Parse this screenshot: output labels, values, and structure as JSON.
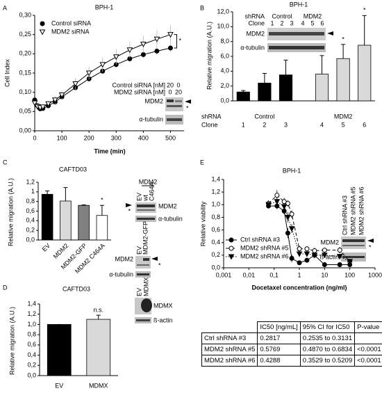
{
  "panels": [
    "A",
    "B",
    "C",
    "D",
    "E"
  ],
  "chart_data": [
    {
      "type": "line",
      "title": "BPH-1",
      "xlabel": "Time (min)",
      "ylabel": "Cell Index",
      "xlim": [
        0,
        550
      ],
      "xticks": [
        0,
        100,
        200,
        300,
        400,
        500
      ],
      "ylim": [
        0,
        0.3
      ],
      "yticks": [
        {
          "value": 0,
          "label": "0,00"
        },
        {
          "value": 0.05,
          "label": "0,05"
        },
        {
          "value": 0.1,
          "label": "0,10"
        },
        {
          "value": 0.15,
          "label": "0,15"
        },
        {
          "value": 0.2,
          "label": "0,20"
        },
        {
          "value": 0.25,
          "label": "0,25"
        },
        {
          "value": 0.3,
          "label": "0,30"
        }
      ],
      "x": [
        0,
        10,
        20,
        30,
        50,
        75,
        100,
        150,
        200,
        250,
        300,
        350,
        400,
        450,
        500
      ],
      "series": [
        {
          "name": "Control siRNA",
          "color": "#000000",
          "marker": "circle",
          "fill": true,
          "dash": "solid",
          "values": [
            0.08,
            0.065,
            0.057,
            0.058,
            0.065,
            0.075,
            0.088,
            0.112,
            0.135,
            0.155,
            0.172,
            0.187,
            0.198,
            0.207,
            0.215
          ],
          "errors": [
            0.003,
            0.003,
            0.003,
            0.003,
            0.004,
            0.004,
            0.005,
            0.006,
            0.007,
            0.008,
            0.008,
            0.009,
            0.009,
            0.01,
            0.01
          ]
        },
        {
          "name": "MDM2 siRNA",
          "color": "#000000",
          "marker": "triangle-down",
          "fill": false,
          "dash": "solid",
          "values": [
            0.072,
            0.063,
            0.06,
            0.062,
            0.07,
            0.08,
            0.093,
            0.122,
            0.15,
            0.172,
            0.192,
            0.21,
            0.225,
            0.238,
            0.25
          ],
          "errors": [
            0.005,
            0.005,
            0.005,
            0.006,
            0.008,
            0.01,
            0.012,
            0.015,
            0.017,
            0.019,
            0.02,
            0.021,
            0.022,
            0.023,
            0.024
          ]
        }
      ],
      "error_color": "#b5b5b5",
      "legend": "upper left",
      "annotation": "*",
      "blot": [
        "Control siRNA [nM]",
        "20",
        "0",
        "MDM2 siRNA [nM]",
        "0",
        "20",
        "MDM2",
        "*",
        "α-tubulin"
      ]
    },
    {
      "type": "bar",
      "title": "BPH-1",
      "ylabel": "Relative migration (A.U.)",
      "ylim": [
        0,
        12
      ],
      "yticks": [
        {
          "value": 0,
          "label": "0,0"
        },
        {
          "value": 2,
          "label": "2,0"
        },
        {
          "value": 4,
          "label": "4,0"
        },
        {
          "value": 6,
          "label": "6,0"
        },
        {
          "value": 8,
          "label": "8,0"
        },
        {
          "value": 10,
          "label": "10,0"
        },
        {
          "value": 12,
          "label": "12,0"
        }
      ],
      "categories": [
        "1",
        "2",
        "3",
        "4",
        "5",
        "6"
      ],
      "values": [
        1.2,
        2.4,
        3.5,
        3.6,
        5.7,
        7.5
      ],
      "errors": [
        0.2,
        1.3,
        2.0,
        2.5,
        1.9,
        4.0
      ],
      "colors": [
        "#000000",
        "#000000",
        "#000000",
        "#d9d9d9",
        "#d9d9d9",
        "#d9d9d9"
      ],
      "row_labels": [
        "shRNA",
        "Clone"
      ],
      "group_labels": [
        "Control",
        "MDM2"
      ],
      "annotations": [
        {
          "category": "5",
          "text": "*"
        },
        {
          "category": "6",
          "text": "*"
        }
      ],
      "blot": [
        "shRNA",
        "Control",
        "MDM2",
        "Clone",
        "1",
        "2",
        "3",
        "4",
        "5",
        "6",
        "MDM2",
        "α-tubulin"
      ]
    },
    {
      "type": "bar",
      "title": "CAFTD03",
      "ylabel": "Relative migration (A.U.)",
      "ylim": [
        0,
        1.2
      ],
      "yticks": [
        {
          "value": 0,
          "label": "0,0"
        },
        {
          "value": 0.2,
          "label": "0,2"
        },
        {
          "value": 0.4,
          "label": "0,4"
        },
        {
          "value": 0.6,
          "label": "0,6"
        },
        {
          "value": 0.8,
          "label": "0,8"
        },
        1,
        {
          "value": 1.2,
          "label": "1,2"
        }
      ],
      "categories": [
        "EV",
        "MDM2",
        "MDM2-GFP",
        "MDM2 C464A"
      ],
      "values": [
        0.95,
        0.81,
        0.72,
        0.51
      ],
      "errors": [
        0.07,
        0.28,
        0.01,
        0.21
      ],
      "colors": [
        "#000000",
        "#d9d9d9",
        "#808080",
        "#ffffff"
      ],
      "annotations": [
        {
          "category": "MDM2 C464A",
          "text": "*"
        }
      ],
      "blot": [
        "MDM2",
        "EV",
        "wt",
        "C464A",
        "MDM2",
        "*",
        "α-tubulin",
        "EV",
        "MDM2-GFP",
        "MDM2",
        "*",
        "α-tubulin"
      ]
    },
    {
      "type": "bar",
      "title": "CAFTD03",
      "ylabel": "Relative migration (A.U.)",
      "ylim": [
        0,
        1.4
      ],
      "yticks": [
        {
          "value": 0,
          "label": "0,0"
        },
        {
          "value": 0.2,
          "label": "0,2"
        },
        {
          "value": 0.4,
          "label": "0,4"
        },
        {
          "value": 0.6,
          "label": "0,6"
        },
        {
          "value": 0.8,
          "label": "0,8"
        },
        {
          "value": 1,
          "label": "1,0"
        },
        {
          "value": 1.2,
          "label": "1,2"
        },
        {
          "value": 1.4,
          "label": "1,4"
        }
      ],
      "categories": [
        "EV",
        "MDMX"
      ],
      "values": [
        1.0,
        1.1
      ],
      "errors": [
        0,
        0.08
      ],
      "colors": [
        "#000000",
        "#d9d9d9"
      ],
      "annotations": [
        {
          "category": "MDMX",
          "text": "n.s."
        }
      ],
      "blot": [
        "EV",
        "MDMX",
        "MDMX",
        "ß-actin"
      ]
    },
    {
      "type": "line",
      "title": "BPH-1",
      "xlabel": "Docetaxel concentration (ng/ml)",
      "ylabel": "Relative viability",
      "xscale": "log",
      "xlim": [
        0.001,
        1000
      ],
      "xticks": [
        {
          "value": 0.001,
          "label": "0,001"
        },
        {
          "value": 0.01,
          "label": "0,01"
        },
        {
          "value": 0.1,
          "label": "0,1"
        },
        1,
        10,
        100,
        1000
      ],
      "ylim": [
        0,
        1.4
      ],
      "yticks": [
        {
          "value": 0,
          "label": "0,0"
        },
        {
          "value": 0.2,
          "label": "0,2"
        },
        {
          "value": 0.4,
          "label": "0,4"
        },
        {
          "value": 0.6,
          "label": "0,6"
        },
        {
          "value": 0.8,
          "label": "0,8"
        },
        {
          "value": 1,
          "label": "1,0"
        },
        {
          "value": 1.2,
          "label": "1,2"
        },
        {
          "value": 1.4,
          "label": "1,4"
        }
      ],
      "x": [
        0.06,
        0.13,
        0.25,
        0.35,
        0.5,
        1,
        2,
        4,
        10,
        40,
        100
      ],
      "series": [
        {
          "name": "Ctrl shRNA #3",
          "color": "#000000",
          "marker": "circle",
          "fill": true,
          "dash": "solid",
          "values": [
            0.98,
            0.98,
            0.9,
            0.55,
            0.15,
            0.08,
            0.12,
            0.2,
            0.05,
            0.05,
            0.05
          ],
          "errors": [
            0.04,
            0.05,
            0.05,
            0.08,
            0.06,
            0.03,
            0.03,
            0.05,
            0.02,
            0.02,
            0.02
          ]
        },
        {
          "name": "MDM2 shRNA #5",
          "color": "#000000",
          "marker": "circle",
          "fill": false,
          "dash": "dashed",
          "values": [
            1.02,
            1.15,
            1.05,
            1.02,
            0.85,
            0.3,
            0.3,
            0.27,
            0.28,
            0.28,
            0.1
          ],
          "errors": [
            0.05,
            0.08,
            0.06,
            0.05,
            0.06,
            0.05,
            0.04,
            0.05,
            0.04,
            0.05,
            0.03
          ]
        },
        {
          "name": "MDM2 shRNA #6",
          "color": "#000000",
          "marker": "triangle-down",
          "fill": true,
          "dash": "dotted",
          "values": [
            1.0,
            1.05,
            0.97,
            0.8,
            0.62,
            0.22,
            0.22,
            0.2,
            0.2,
            0.18,
            0.1
          ],
          "errors": [
            0.04,
            0.05,
            0.04,
            0.08,
            0.07,
            0.04,
            0.04,
            0.04,
            0.03,
            0.04,
            0.03
          ]
        }
      ],
      "error_color": "#000000",
      "legend": "lower left",
      "blot": [
        "Ctrl shRNA #3",
        "MDM2 shRNA #5",
        "MDM2 shRNA #6",
        "MDM2",
        "*",
        "ß-actin"
      ]
    }
  ],
  "table": {
    "columns": [
      "IC50 [ng/mL]",
      "95% CI for IC50",
      "P-value"
    ],
    "rows": [
      {
        "label": "Ctrl shRNA #3",
        "cells": [
          0.2817,
          "0.2535 to 0.3131"
        ]
      },
      {
        "label": "MDM2 shRNA #5",
        "cells": [
          0.5769,
          "0.4870 to 0.6834",
          "<0.0001"
        ]
      },
      {
        "label": "MDM2 shRNA #6",
        "cells": [
          0.4288,
          "0.3529 to 0.5209",
          "<0.0001"
        ]
      }
    ]
  }
}
